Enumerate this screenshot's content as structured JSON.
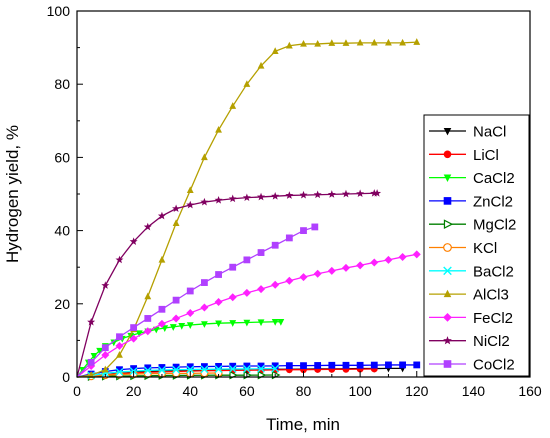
{
  "chart_data": {
    "type": "line",
    "xlabel": "Time, min",
    "ylabel": "Hydrogen yield, %",
    "xlim": [
      0,
      160
    ],
    "ylim": [
      0,
      100
    ],
    "xticks": [
      0,
      20,
      40,
      60,
      80,
      100,
      120,
      140,
      160
    ],
    "yticks": [
      0,
      20,
      40,
      60,
      80,
      100
    ],
    "grid": false,
    "legend_position": "right",
    "series": [
      {
        "name": "NaCl",
        "color": "#000000",
        "marker": "tri-down",
        "points": [
          [
            0,
            0
          ],
          [
            5,
            0.3
          ],
          [
            10,
            1.0
          ],
          [
            15,
            1.3
          ],
          [
            20,
            1.5
          ],
          [
            25,
            1.6
          ],
          [
            30,
            1.7
          ],
          [
            35,
            1.8
          ],
          [
            40,
            1.85
          ],
          [
            45,
            1.9
          ],
          [
            50,
            1.95
          ],
          [
            55,
            2.0
          ],
          [
            60,
            2.0
          ],
          [
            65,
            2.05
          ],
          [
            70,
            2.1
          ],
          [
            75,
            2.1
          ],
          [
            80,
            2.15
          ],
          [
            85,
            2.2
          ],
          [
            90,
            2.2
          ],
          [
            95,
            2.25
          ],
          [
            100,
            2.3
          ],
          [
            105,
            2.3
          ],
          [
            110,
            2.35
          ],
          [
            115,
            2.35
          ]
        ]
      },
      {
        "name": "LiCl",
        "color": "#ff0000",
        "marker": "circle",
        "points": [
          [
            0,
            0
          ],
          [
            5,
            0.2
          ],
          [
            10,
            0.6
          ],
          [
            15,
            0.9
          ],
          [
            20,
            1.1
          ],
          [
            25,
            1.3
          ],
          [
            30,
            1.4
          ],
          [
            35,
            1.5
          ],
          [
            40,
            1.6
          ],
          [
            45,
            1.7
          ],
          [
            50,
            1.75
          ],
          [
            55,
            1.8
          ],
          [
            60,
            1.85
          ],
          [
            65,
            1.9
          ],
          [
            70,
            1.95
          ],
          [
            75,
            2.0
          ],
          [
            80,
            2.0
          ],
          [
            85,
            2.05
          ],
          [
            90,
            2.1
          ],
          [
            95,
            2.1
          ],
          [
            100,
            2.15
          ],
          [
            105,
            2.2
          ]
        ]
      },
      {
        "name": "CaCl2",
        "color": "#00ff00",
        "marker": "tri-down",
        "points": [
          [
            0,
            0
          ],
          [
            2,
            2
          ],
          [
            4,
            4
          ],
          [
            6,
            5.8
          ],
          [
            8,
            7.2
          ],
          [
            10,
            8.5
          ],
          [
            13,
            9.5
          ],
          [
            16,
            10.5
          ],
          [
            19,
            11.3
          ],
          [
            22,
            12
          ],
          [
            25,
            12.5
          ],
          [
            28,
            13
          ],
          [
            31,
            13.4
          ],
          [
            34,
            13.7
          ],
          [
            37,
            14
          ],
          [
            40,
            14.2
          ],
          [
            45,
            14.5
          ],
          [
            50,
            14.7
          ],
          [
            55,
            14.8
          ],
          [
            60,
            14.9
          ],
          [
            65,
            15
          ],
          [
            70,
            15.1
          ],
          [
            72,
            15.1
          ]
        ]
      },
      {
        "name": "ZnCl2",
        "color": "#0000ff",
        "marker": "square",
        "points": [
          [
            0,
            0
          ],
          [
            5,
            0.8
          ],
          [
            10,
            1.5
          ],
          [
            15,
            2.0
          ],
          [
            20,
            2.3
          ],
          [
            25,
            2.5
          ],
          [
            30,
            2.6
          ],
          [
            35,
            2.7
          ],
          [
            40,
            2.8
          ],
          [
            45,
            2.85
          ],
          [
            50,
            2.9
          ],
          [
            55,
            2.95
          ],
          [
            60,
            3.0
          ],
          [
            65,
            3.0
          ],
          [
            70,
            3.05
          ],
          [
            75,
            3.1
          ],
          [
            80,
            3.1
          ],
          [
            85,
            3.15
          ],
          [
            90,
            3.2
          ],
          [
            95,
            3.2
          ],
          [
            100,
            3.2
          ],
          [
            105,
            3.25
          ],
          [
            110,
            3.3
          ],
          [
            115,
            3.3
          ],
          [
            120,
            3.3
          ]
        ]
      },
      {
        "name": "MgCl2",
        "color": "#007f00",
        "marker": "tri-right",
        "points": [
          [
            0,
            0
          ],
          [
            5,
            0.1
          ],
          [
            10,
            0.2
          ],
          [
            15,
            0.25
          ],
          [
            20,
            0.3
          ],
          [
            25,
            0.35
          ],
          [
            30,
            0.4
          ],
          [
            35,
            0.42
          ],
          [
            40,
            0.45
          ],
          [
            45,
            0.47
          ],
          [
            50,
            0.5
          ],
          [
            55,
            0.5
          ],
          [
            60,
            0.5
          ],
          [
            65,
            0.52
          ],
          [
            70,
            0.55
          ]
        ]
      },
      {
        "name": "KCl",
        "color": "#ff8000",
        "marker": "open-circle",
        "points": [
          [
            0,
            0
          ],
          [
            5,
            0.2
          ],
          [
            10,
            0.5
          ],
          [
            15,
            0.7
          ],
          [
            20,
            0.8
          ],
          [
            25,
            0.9
          ],
          [
            30,
            0.95
          ],
          [
            35,
            1.0
          ],
          [
            40,
            1.0
          ],
          [
            45,
            1.05
          ],
          [
            50,
            1.1
          ]
        ]
      },
      {
        "name": "BaCl2",
        "color": "#00ffff",
        "marker": "x",
        "points": [
          [
            0,
            0
          ],
          [
            5,
            0.4
          ],
          [
            10,
            1.0
          ],
          [
            15,
            1.4
          ],
          [
            20,
            1.6
          ],
          [
            25,
            1.8
          ],
          [
            30,
            1.9
          ],
          [
            35,
            2.0
          ],
          [
            40,
            2.05
          ],
          [
            45,
            2.1
          ],
          [
            50,
            2.15
          ],
          [
            55,
            2.2
          ],
          [
            60,
            2.2
          ],
          [
            65,
            2.25
          ],
          [
            70,
            2.3
          ]
        ]
      },
      {
        "name": "AlCl3",
        "color": "#b5a000",
        "marker": "triangle",
        "points": [
          [
            0,
            0
          ],
          [
            5,
            0.5
          ],
          [
            10,
            2
          ],
          [
            15,
            6
          ],
          [
            20,
            13
          ],
          [
            25,
            22
          ],
          [
            30,
            32
          ],
          [
            35,
            42
          ],
          [
            40,
            51
          ],
          [
            45,
            60
          ],
          [
            50,
            67.5
          ],
          [
            55,
            74
          ],
          [
            60,
            80
          ],
          [
            65,
            85
          ],
          [
            70,
            89
          ],
          [
            75,
            90.5
          ],
          [
            80,
            91
          ],
          [
            85,
            91
          ],
          [
            90,
            91.2
          ],
          [
            95,
            91.2
          ],
          [
            100,
            91.3
          ],
          [
            105,
            91.3
          ],
          [
            110,
            91.3
          ],
          [
            115,
            91.3
          ],
          [
            120,
            91.5
          ]
        ]
      },
      {
        "name": "FeCl2",
        "color": "#ff20ff",
        "marker": "diamond",
        "points": [
          [
            0,
            0
          ],
          [
            5,
            3
          ],
          [
            10,
            6
          ],
          [
            15,
            8.5
          ],
          [
            20,
            10.5
          ],
          [
            25,
            12.5
          ],
          [
            30,
            14.5
          ],
          [
            35,
            16
          ],
          [
            40,
            17.5
          ],
          [
            45,
            19
          ],
          [
            50,
            20.5
          ],
          [
            55,
            21.8
          ],
          [
            60,
            23
          ],
          [
            65,
            24
          ],
          [
            70,
            25.2
          ],
          [
            75,
            26.3
          ],
          [
            80,
            27.3
          ],
          [
            85,
            28.2
          ],
          [
            90,
            29
          ],
          [
            95,
            29.8
          ],
          [
            100,
            30.5
          ],
          [
            105,
            31.3
          ],
          [
            110,
            32
          ],
          [
            115,
            32.8
          ],
          [
            120,
            33.5
          ]
        ]
      },
      {
        "name": "NiCl2",
        "color": "#800060",
        "marker": "star",
        "points": [
          [
            0,
            0
          ],
          [
            5,
            15
          ],
          [
            10,
            25
          ],
          [
            15,
            32
          ],
          [
            20,
            37
          ],
          [
            25,
            41
          ],
          [
            30,
            44
          ],
          [
            35,
            46
          ],
          [
            40,
            47
          ],
          [
            45,
            47.8
          ],
          [
            50,
            48.3
          ],
          [
            55,
            48.7
          ],
          [
            60,
            49
          ],
          [
            65,
            49.2
          ],
          [
            70,
            49.4
          ],
          [
            75,
            49.6
          ],
          [
            80,
            49.7
          ],
          [
            85,
            49.8
          ],
          [
            90,
            49.9
          ],
          [
            95,
            50
          ],
          [
            100,
            50.1
          ],
          [
            105,
            50.2
          ],
          [
            106,
            50.2
          ]
        ]
      },
      {
        "name": "CoCl2",
        "color": "#b040ff",
        "marker": "square",
        "points": [
          [
            0,
            0
          ],
          [
            5,
            4
          ],
          [
            10,
            8
          ],
          [
            15,
            11
          ],
          [
            20,
            13.5
          ],
          [
            25,
            16
          ],
          [
            30,
            18.5
          ],
          [
            35,
            21
          ],
          [
            40,
            23.5
          ],
          [
            45,
            25.8
          ],
          [
            50,
            28
          ],
          [
            55,
            30
          ],
          [
            60,
            32
          ],
          [
            65,
            34
          ],
          [
            70,
            36
          ],
          [
            75,
            38
          ],
          [
            80,
            40
          ],
          [
            84,
            41
          ]
        ]
      }
    ]
  }
}
